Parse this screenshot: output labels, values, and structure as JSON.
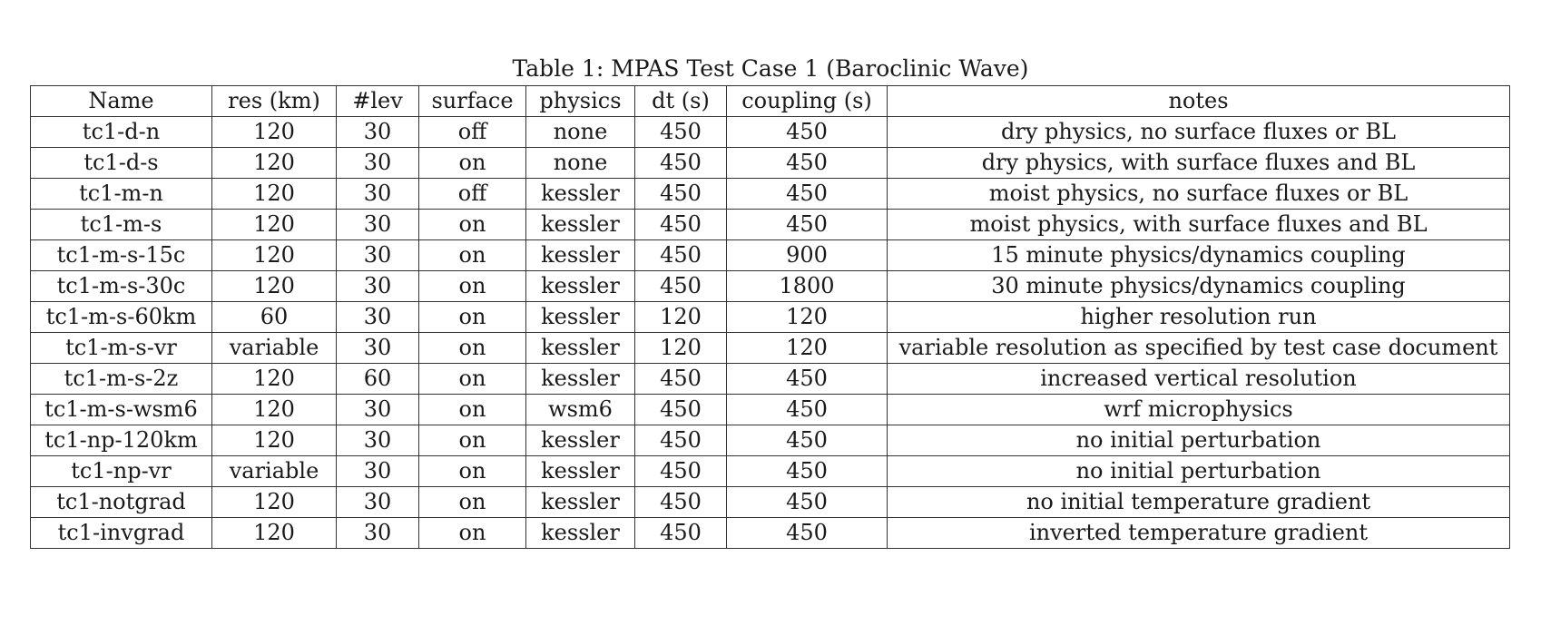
{
  "caption": "Table 1: MPAS Test Case 1 (Baroclinic Wave)",
  "columns": [
    "Name",
    "res (km)",
    "#lev",
    "surface",
    "physics",
    "dt (s)",
    "coupling (s)",
    "notes"
  ],
  "rows": [
    [
      "tc1-d-n",
      "120",
      "30",
      "off",
      "none",
      "450",
      "450",
      "dry physics, no surface fluxes or BL"
    ],
    [
      "tc1-d-s",
      "120",
      "30",
      "on",
      "none",
      "450",
      "450",
      "dry physics, with surface fluxes and BL"
    ],
    [
      "tc1-m-n",
      "120",
      "30",
      "off",
      "kessler",
      "450",
      "450",
      "moist physics, no surface fluxes or BL"
    ],
    [
      "tc1-m-s",
      "120",
      "30",
      "on",
      "kessler",
      "450",
      "450",
      "moist physics, with surface fluxes and BL"
    ],
    [
      "tc1-m-s-15c",
      "120",
      "30",
      "on",
      "kessler",
      "450",
      "900",
      "15 minute physics/dynamics coupling"
    ],
    [
      "tc1-m-s-30c",
      "120",
      "30",
      "on",
      "kessler",
      "450",
      "1800",
      "30 minute physics/dynamics coupling"
    ],
    [
      "tc1-m-s-60km",
      "60",
      "30",
      "on",
      "kessler",
      "120",
      "120",
      "higher resolution run"
    ],
    [
      "tc1-m-s-vr",
      "variable",
      "30",
      "on",
      "kessler",
      "120",
      "120",
      "variable resolution as specified by test case document"
    ],
    [
      "tc1-m-s-2z",
      "120",
      "60",
      "on",
      "kessler",
      "450",
      "450",
      "increased vertical resolution"
    ],
    [
      "tc1-m-s-wsm6",
      "120",
      "30",
      "on",
      "wsm6",
      "450",
      "450",
      "wrf microphysics"
    ],
    [
      "tc1-np-120km",
      "120",
      "30",
      "on",
      "kessler",
      "450",
      "450",
      "no initial perturbation"
    ],
    [
      "tc1-np-vr",
      "variable",
      "30",
      "on",
      "kessler",
      "450",
      "450",
      "no initial perturbation"
    ],
    [
      "tc1-notgrad",
      "120",
      "30",
      "on",
      "kessler",
      "450",
      "450",
      "no initial temperature gradient"
    ],
    [
      "tc1-invgrad",
      "120",
      "30",
      "on",
      "kessler",
      "450",
      "450",
      "inverted temperature gradient"
    ]
  ]
}
